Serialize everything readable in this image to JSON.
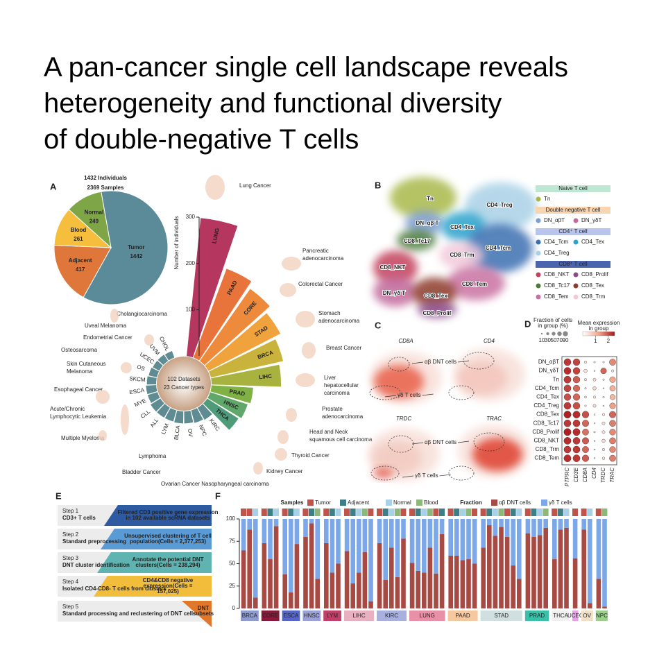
{
  "title_lines": [
    "A pan-cancer single cell landscape reveals",
    "heterogeneity and functional diversity",
    "of double-negative T cells"
  ],
  "panel_labels": [
    "A",
    "B",
    "C",
    "D",
    "E",
    "F"
  ],
  "chart_data": [
    {
      "type": "pie",
      "title_lines": [
        "1432 Individuals",
        "2369 Samples"
      ],
      "categories": [
        "Tumor",
        "Adjacent",
        "Blood",
        "Normal"
      ],
      "values": [
        1442,
        417,
        261,
        249
      ],
      "colors": [
        "#5b8a98",
        "#e0773a",
        "#f5be3c",
        "#7ea646"
      ]
    },
    {
      "type": "radial_bar",
      "ylabel": "Number of individuals",
      "center_lines": [
        "102 Datasets",
        "23 Cancer types"
      ],
      "categories": [
        "LUNG",
        "PAAD",
        "CORE",
        "STAD",
        "BRCA",
        "LIHC",
        "PRAD",
        "HNSC",
        "THCA",
        "KIRC",
        "NPC",
        "OV",
        "BLCA",
        "LYM",
        "ALL",
        "CLL",
        "MYE",
        "ESCA",
        "SKCM",
        "OS",
        "UCEC",
        "UVM",
        "CHOL"
      ],
      "values": [
        300,
        205,
        190,
        175,
        160,
        150,
        90,
        85,
        80,
        30,
        28,
        26,
        26,
        25,
        25,
        25,
        22,
        22,
        20,
        18,
        16,
        16,
        15
      ],
      "colors": [
        "#b5365e",
        "#e8743b",
        "#ee8a3c",
        "#f0a23c",
        "#c9b33c",
        "#a8b23e",
        "#7fb144",
        "#5fa86a",
        "#4f9b79",
        "#5e8c92",
        "#5e8c92",
        "#5e8c92",
        "#5e8c92",
        "#5e8c92",
        "#5e8c92",
        "#5e8c92",
        "#5e8c92",
        "#5e8c92",
        "#5e8c92",
        "#5e8c92",
        "#5e8c92",
        "#5e8c92",
        "#5e8c92"
      ],
      "ylim": [
        0,
        300
      ],
      "yticks": [
        100,
        200,
        300
      ],
      "cancer_names": [
        [
          "Lung Cancer"
        ],
        [
          "Pancreatic",
          "adenocarcinoma"
        ],
        [
          "Colorectal Cancer"
        ],
        [
          "Stomach",
          "adenocarcinoma"
        ],
        [
          "Breast Cancer"
        ],
        [
          "Liver",
          "hepatocellular",
          "carcinoma"
        ],
        [
          "Prostate",
          "adenocarcinoma"
        ],
        [
          "Head and Neck",
          "squamous cell carcinoma"
        ],
        [
          "Thyroid Cancer"
        ],
        [
          "Kidney Cancer"
        ],
        [
          "Ovarian Cancer Nasopharyngeal carcinoma"
        ],
        [
          "Bladder Cancer"
        ],
        [
          "Lymphoma"
        ],
        [
          "Multiple Myeloma"
        ],
        [
          "Acute/Chronic",
          "Lymphocytic Leukemia"
        ],
        [
          "Esophageal Cancer"
        ],
        [
          "Skin Cutaneous",
          "Melanoma"
        ],
        [
          "Osteosarcoma"
        ],
        [
          "Endometrial Cancer"
        ],
        [
          "Uveal Melanoma"
        ],
        [
          "Cholangiocarcinoma"
        ]
      ]
    },
    {
      "type": "dotplot",
      "size_title_lines": [
        "Fraction of cells",
        "in group (%)"
      ],
      "color_title_lines": [
        "Mean expression",
        "in group"
      ],
      "rows": [
        "DN_αβT",
        "DN_γδT",
        "Tn",
        "CD4_Tcm",
        "CD4_Tex",
        "CD4_Treg",
        "CD8_Tex",
        "CD8_Tc17",
        "CD8_Prolif",
        "CD8_NKT",
        "CD8_Trm",
        "CD8_Tem"
      ],
      "columns": [
        "PTPRC",
        "CD3E",
        "CD8A",
        "CD4",
        "TRDC",
        "TRAC"
      ],
      "fraction": [
        [
          85,
          80,
          10,
          5,
          5,
          70
        ],
        [
          85,
          82,
          20,
          3,
          60,
          10
        ],
        [
          88,
          80,
          10,
          15,
          5,
          60
        ],
        [
          85,
          75,
          5,
          20,
          3,
          55
        ],
        [
          80,
          78,
          8,
          10,
          5,
          50
        ],
        [
          85,
          82,
          5,
          15,
          3,
          60
        ],
        [
          90,
          88,
          80,
          3,
          10,
          75
        ],
        [
          85,
          85,
          75,
          3,
          15,
          70
        ],
        [
          90,
          88,
          70,
          5,
          15,
          65
        ],
        [
          88,
          85,
          75,
          3,
          20,
          70
        ],
        [
          85,
          85,
          72,
          3,
          10,
          65
        ],
        [
          88,
          86,
          78,
          3,
          12,
          70
        ]
      ],
      "expression": [
        [
          2.2,
          2.1,
          0.3,
          0.2,
          0.2,
          1.5
        ],
        [
          2.3,
          2.1,
          0.4,
          0.1,
          1.8,
          0.3
        ],
        [
          2.2,
          1.9,
          0.3,
          0.5,
          0.2,
          1.2
        ],
        [
          2.1,
          1.8,
          0.2,
          0.6,
          0.1,
          1.1
        ],
        [
          2.0,
          1.8,
          0.3,
          0.3,
          0.2,
          1.0
        ],
        [
          2.2,
          2.0,
          0.2,
          0.5,
          0.1,
          1.3
        ],
        [
          2.4,
          2.3,
          2.0,
          0.1,
          0.3,
          1.8
        ],
        [
          2.2,
          2.2,
          1.8,
          0.1,
          0.4,
          1.6
        ],
        [
          2.4,
          2.3,
          1.7,
          0.2,
          0.4,
          1.5
        ],
        [
          2.3,
          2.2,
          1.9,
          0.1,
          0.5,
          1.6
        ],
        [
          2.2,
          2.2,
          1.8,
          0.1,
          0.3,
          1.5
        ],
        [
          2.3,
          2.2,
          1.9,
          0.1,
          0.3,
          1.6
        ]
      ],
      "size_ticks": [
        10,
        30,
        50,
        70,
        90
      ],
      "clim": [
        0,
        2.5
      ],
      "cticks": [
        1,
        2
      ]
    },
    {
      "type": "stacked_bar",
      "legend_titles": [
        "Samples",
        "Fraction"
      ],
      "sample_types": [
        "Tumor",
        "Adjacent",
        "Normal",
        "Blood"
      ],
      "sample_colors": [
        "#c0544a",
        "#3e7f86",
        "#a8d0e8",
        "#8db87a"
      ],
      "groups": [
        {
          "name": "BRCA",
          "color": "#8d9bd0",
          "samples": [
            "Tumor",
            "Tumor",
            "Normal"
          ]
        },
        {
          "name": "CORE",
          "color": "#8a1a3a",
          "samples": [
            "Tumor",
            "Adjacent",
            "Normal"
          ]
        },
        {
          "name": "ESCA",
          "color": "#5566c8",
          "samples": [
            "Tumor",
            "Adjacent",
            "Normal"
          ]
        },
        {
          "name": "HNSC",
          "color": "#9aa0d8",
          "samples": [
            "Tumor",
            "Adjacent",
            "Blood"
          ]
        },
        {
          "name": "LYM",
          "color": "#c0406a",
          "samples": [
            "Tumor",
            "Adjacent",
            "Normal"
          ]
        },
        {
          "name": "LIHC",
          "color": "#e8b0c0",
          "samples": [
            "Tumor",
            "Adjacent",
            "Normal",
            "Blood",
            "Tumor"
          ]
        },
        {
          "name": "KIRC",
          "color": "#a8b0e0",
          "samples": [
            "Tumor",
            "Adjacent",
            "Normal",
            "Blood",
            "Tumor"
          ]
        },
        {
          "name": "LUNG",
          "color": "#e890a8",
          "samples": [
            "Tumor",
            "Adjacent",
            "Normal",
            "Blood",
            "Tumor",
            "Adjacent"
          ]
        },
        {
          "name": "PAAD",
          "color": "#f5c8a0",
          "samples": [
            "Tumor",
            "Adjacent",
            "Normal",
            "Blood",
            "Tumor"
          ]
        },
        {
          "name": "STAD",
          "color": "#d0e0e0",
          "samples": [
            "Tumor",
            "Adjacent",
            "Normal",
            "Blood",
            "Tumor",
            "Adjacent",
            "Normal"
          ]
        },
        {
          "name": "PRAD",
          "color": "#3ac0a8",
          "samples": [
            "Tumor",
            "Adjacent",
            "Normal",
            "Blood"
          ]
        },
        {
          "name": "THCA",
          "color": "#f0f0f0",
          "samples": [
            "Tumor",
            "Adjacent",
            "Normal"
          ]
        },
        {
          "name": "UCEC",
          "color": "#e8a0e8",
          "samples": [
            "Tumor"
          ]
        },
        {
          "name": "OV",
          "color": "#f0e0c8",
          "samples": [
            "Tumor",
            "Normal"
          ]
        },
        {
          "name": "NPC",
          "color": "#9ad08a",
          "samples": [
            "Tumor",
            "Blood"
          ]
        }
      ],
      "series": [
        {
          "name": "αβ DNT cells",
          "color": "#a84a44",
          "values": [
            65,
            88,
            12,
            73,
            55,
            92,
            38,
            18,
            72,
            80,
            95,
            33,
            73,
            40,
            50,
            64,
            28,
            40,
            63,
            8,
            73,
            32,
            68,
            35,
            78,
            51,
            42,
            40,
            68,
            39,
            83,
            59,
            59,
            54,
            55,
            50,
            68,
            93,
            81,
            91,
            80,
            48,
            33,
            84,
            80,
            82,
            90,
            55,
            88,
            90,
            56,
            88,
            6,
            33,
            2
          ]
        },
        {
          "name": "γδ T cells",
          "color": "#7ca7e8",
          "values": [
            35,
            12,
            88,
            27,
            45,
            8,
            62,
            82,
            28,
            20,
            5,
            67,
            27,
            60,
            50,
            36,
            72,
            60,
            37,
            92,
            27,
            68,
            32,
            65,
            22,
            49,
            58,
            60,
            32,
            61,
            17,
            41,
            41,
            46,
            45,
            50,
            32,
            7,
            19,
            9,
            20,
            52,
            67,
            16,
            20,
            18,
            10,
            45,
            12,
            10,
            44,
            12,
            94,
            67,
            98
          ]
        }
      ],
      "ylim": [
        0,
        100
      ],
      "yticks": [
        0,
        25,
        50,
        75,
        100
      ]
    }
  ],
  "panel_b": {
    "umap_labels": [
      "Tn",
      "CD4_Treg",
      "DN_αβ T",
      "CD4_Tex",
      "CD8_Tc17",
      "CD4_Tcm",
      "CD8_Trm",
      "CD8_NKT",
      "CD8_Tem",
      "DN_γδ T",
      "CD8_Tex",
      "CD8_Prolif"
    ],
    "umap_colors": [
      "#a9b94b",
      "#a9d1e6",
      "#7c9dd2",
      "#2ba3cc",
      "#4b7c3b",
      "#3c6fb2",
      "#f2c9da",
      "#c2415c",
      "#c972a2",
      "#c26c9e",
      "#8d3b2b",
      "#8b4b8c"
    ],
    "legend": [
      {
        "header": "Naive T cell",
        "color": "#bfe6d2",
        "items": [
          {
            "name": "Tn",
            "color": "#a9b94b"
          }
        ]
      },
      {
        "header": "Double negative T cell",
        "color": "#f8d5b0",
        "items": [
          {
            "name": "DN_αβT",
            "color": "#7c9dd2"
          },
          {
            "name": "DN_γδT",
            "color": "#c26c9e"
          }
        ]
      },
      {
        "header": "CD4⁺ T cell",
        "color": "#b8c4ea",
        "items": [
          {
            "name": "CD4_Tcm",
            "color": "#3c6fb2"
          },
          {
            "name": "CD4_Tex",
            "color": "#2ba3cc"
          },
          {
            "name": "CD4_Treg",
            "color": "#a9d1e6"
          }
        ]
      },
      {
        "header": "CD8⁺ T cell",
        "color": "#4a64ad",
        "items": [
          {
            "name": "CD8_NKT",
            "color": "#c2415c"
          },
          {
            "name": "CD8_Prolif",
            "color": "#8b4b8c"
          },
          {
            "name": "CD8_Tc17",
            "color": "#4b7c3b"
          },
          {
            "name": "CD8_Tex",
            "color": "#8d3b2b"
          },
          {
            "name": "CD8_Tem",
            "color": "#c972a2"
          },
          {
            "name": "CD8_Trm",
            "color": "#f2c9da"
          }
        ]
      }
    ]
  },
  "panel_c": {
    "genes": [
      "CD8A",
      "CD4",
      "TRDC",
      "TRAC"
    ],
    "annotations": [
      "αβ DNT cells",
      "γδ T cells"
    ]
  },
  "panel_e": {
    "steps": [
      {
        "step": "Step 1",
        "name": "CD3+ T cells",
        "desc": [
          "Filtered CD3 positive gene expression",
          "in 102 available scRNA datasets"
        ],
        "color": "#2d5aa0"
      },
      {
        "step": "Step 2",
        "name": "Standard preprocessing",
        "desc": [
          "Unsupervised clustering of T cell",
          "population(Cells = 2,377,253)"
        ],
        "color": "#5b9bd5"
      },
      {
        "step": "Step 3",
        "name": "DNT cluster identification",
        "desc": [
          "Annotate the potential DNT",
          "clusters(Cells = 238,294)"
        ],
        "color": "#5fb3b0"
      },
      {
        "step": "Step 4",
        "name": "Isolated CD4-CD8- T cells from clusters",
        "desc": [
          "CD4&CD8 negative",
          "expression(Cells =",
          "157,025)"
        ],
        "color": "#f2bd3a"
      },
      {
        "step": "Step 5",
        "name": "Standard processing and reclustering of DNT cells",
        "desc": [
          "DNT",
          "subsets"
        ],
        "color": "#e0772a"
      }
    ]
  }
}
